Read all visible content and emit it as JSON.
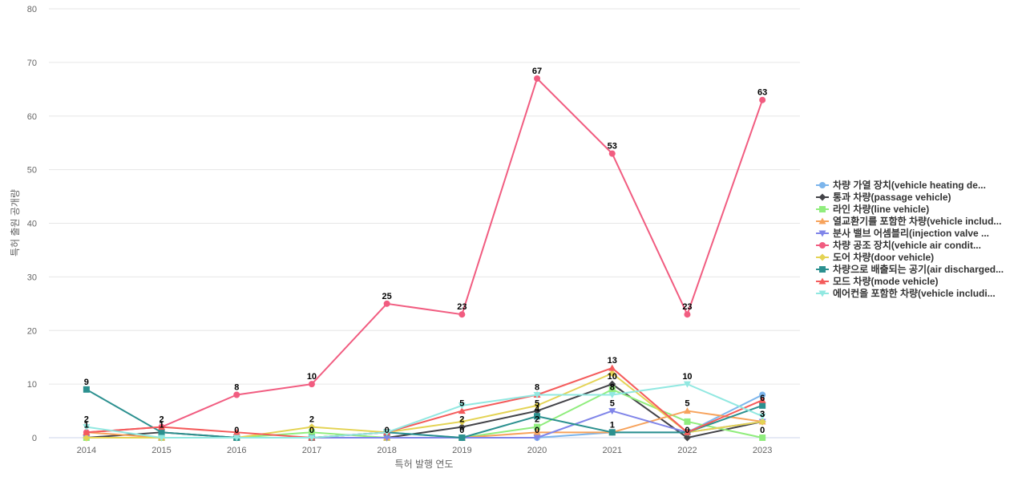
{
  "chart_data": {
    "type": "line",
    "xlabel": "특허 발행 연도",
    "ylabel": "특허 출원 공개량",
    "ylim": [
      0,
      80
    ],
    "yticks": [
      0,
      10,
      20,
      30,
      40,
      50,
      60,
      70,
      80
    ],
    "categories": [
      "2014",
      "2015",
      "2016",
      "2017",
      "2018",
      "2019",
      "2020",
      "2021",
      "2022",
      "2023"
    ],
    "grid": true,
    "legend_position": "right",
    "series": [
      {
        "name": "차량 가열 장치(vehicle heating de...",
        "color": "#7cb5ec",
        "marker": "circle",
        "values": [
          0,
          0,
          0,
          0,
          1,
          0,
          0,
          1,
          1,
          8
        ],
        "labels": []
      },
      {
        "name": "통과 차량(passage vehicle)",
        "color": "#434348",
        "marker": "diamond",
        "values": [
          0,
          1,
          0,
          0,
          0,
          2,
          5,
          10,
          0,
          3
        ],
        "labels": [
          false,
          false,
          false,
          false,
          true,
          true,
          true,
          true,
          true,
          true
        ]
      },
      {
        "name": "라인 차량(line vehicle)",
        "color": "#90ed7d",
        "marker": "square",
        "values": [
          0,
          0,
          0,
          1,
          0,
          0,
          2,
          9,
          3,
          0
        ],
        "labels": [
          false,
          false,
          false,
          false,
          false,
          false,
          true,
          false,
          false,
          true
        ]
      },
      {
        "name": "열교환기를 포함한 차량(vehicle includ...",
        "color": "#f7a35c",
        "marker": "triangle",
        "values": [
          1,
          0,
          0,
          0,
          0,
          0,
          1,
          1,
          5,
          3
        ],
        "labels": [
          false,
          false,
          false,
          false,
          false,
          false,
          false,
          true,
          true,
          true
        ]
      },
      {
        "name": "분사 밸브 어셈블리(injection valve ...",
        "color": "#8085e9",
        "marker": "triangle-down",
        "values": [
          0,
          0,
          0,
          0,
          0,
          0,
          0,
          5,
          1,
          3
        ],
        "labels": [
          false,
          false,
          false,
          false,
          false,
          false,
          true,
          true,
          false,
          false
        ]
      },
      {
        "name": "차량 공조 장치(vehicle air condit...",
        "color": "#f15c80",
        "marker": "circle",
        "values": [
          1,
          2,
          8,
          10,
          25,
          23,
          67,
          53,
          23,
          63
        ],
        "labels": [
          true,
          true,
          true,
          true,
          true,
          true,
          true,
          true,
          true,
          true
        ]
      },
      {
        "name": "도어 차량(door vehicle)",
        "color": "#e4d354",
        "marker": "diamond",
        "values": [
          0,
          0,
          0,
          2,
          1,
          3,
          6,
          12,
          1,
          3
        ],
        "labels": [
          false,
          false,
          false,
          true,
          false,
          false,
          false,
          false,
          false,
          false
        ]
      },
      {
        "name": "차량으로 배출되는 공기(air discharged...",
        "color": "#2b908f",
        "marker": "square",
        "values": [
          9,
          1,
          0,
          0,
          1,
          0,
          4,
          1,
          1,
          6
        ],
        "labels": [
          true,
          true,
          true,
          true,
          false,
          true,
          true,
          false,
          false,
          true
        ]
      },
      {
        "name": "모드 차량(mode vehicle)",
        "color": "#f45b5b",
        "marker": "triangle",
        "values": [
          1,
          2,
          1,
          0,
          1,
          5,
          8,
          13,
          1,
          7
        ],
        "labels": [
          false,
          false,
          false,
          false,
          false,
          true,
          false,
          true,
          false,
          false
        ]
      },
      {
        "name": "에어컨을 포함한 차량(vehicle includi...",
        "color": "#91e8e1",
        "marker": "triangle-down",
        "values": [
          2,
          0,
          0,
          0,
          1,
          6,
          8,
          8,
          10,
          4
        ],
        "labels": [
          true,
          false,
          false,
          false,
          false,
          false,
          true,
          true,
          true,
          false
        ]
      }
    ]
  }
}
